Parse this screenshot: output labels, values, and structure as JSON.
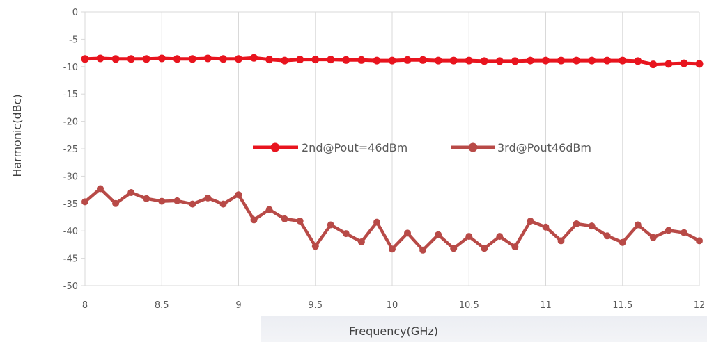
{
  "chart_data": {
    "type": "line",
    "title": "",
    "xlabel": "Frequency(GHz)",
    "ylabel": "Harmonic(dBc)",
    "xlim": [
      8,
      12
    ],
    "ylim": [
      -50,
      0
    ],
    "xticks": [
      8,
      8.5,
      9,
      9.5,
      10,
      10.5,
      11,
      11.5,
      12
    ],
    "yticks": [
      0,
      -5,
      -10,
      -15,
      -20,
      -25,
      -30,
      -35,
      -40,
      -45,
      -50
    ],
    "xtick_labels": [
      "8",
      "8.5",
      "9",
      "9.5",
      "10",
      "10.5",
      "11",
      "11.5",
      "12"
    ],
    "ytick_labels": [
      "0",
      "-5",
      "-10",
      "-15",
      "-20",
      "-25",
      "-30",
      "-35",
      "-40",
      "-45",
      "-50"
    ],
    "grid": "vertical",
    "legend_position": "center",
    "x": [
      8.0,
      8.1,
      8.2,
      8.3,
      8.4,
      8.5,
      8.6,
      8.7,
      8.8,
      8.9,
      9.0,
      9.1,
      9.2,
      9.3,
      9.4,
      9.5,
      9.6,
      9.7,
      9.8,
      9.9,
      10.0,
      10.1,
      10.2,
      10.3,
      10.4,
      10.5,
      10.6,
      10.7,
      10.8,
      10.9,
      11.0,
      11.1,
      11.2,
      11.3,
      11.4,
      11.5,
      11.6,
      11.7,
      11.8,
      11.9,
      12.0
    ],
    "series": [
      {
        "name": "2nd@Pout=46dBm",
        "color": "#e8141e",
        "values": [
          -8.6,
          -8.5,
          -8.6,
          -8.6,
          -8.6,
          -8.5,
          -8.6,
          -8.6,
          -8.5,
          -8.6,
          -8.6,
          -8.4,
          -8.7,
          -8.9,
          -8.7,
          -8.7,
          -8.7,
          -8.8,
          -8.8,
          -8.9,
          -8.9,
          -8.8,
          -8.8,
          -8.9,
          -8.9,
          -8.9,
          -9.0,
          -9.0,
          -9.0,
          -8.9,
          -8.9,
          -8.9,
          -8.9,
          -8.9,
          -8.9,
          -8.9,
          -9.0,
          -9.6,
          -9.5,
          -9.4,
          -9.5
        ]
      },
      {
        "name": "3rd@Pout46dBm",
        "color": "#b84a47",
        "values": [
          -34.7,
          -32.3,
          -35.0,
          -33.0,
          -34.1,
          -34.6,
          -34.5,
          -35.1,
          -34.0,
          -35.1,
          -33.4,
          -38.0,
          -36.1,
          -37.8,
          -38.2,
          -42.8,
          -38.9,
          -40.5,
          -42.0,
          -38.4,
          -43.3,
          -40.4,
          -43.5,
          -40.7,
          -43.2,
          -41.0,
          -43.2,
          -41.0,
          -42.9,
          -38.2,
          -39.3,
          -41.8,
          -38.7,
          -39.1,
          -40.9,
          -42.1,
          -38.9,
          -41.2,
          -39.9,
          -40.3,
          -41.8
        ]
      }
    ]
  }
}
